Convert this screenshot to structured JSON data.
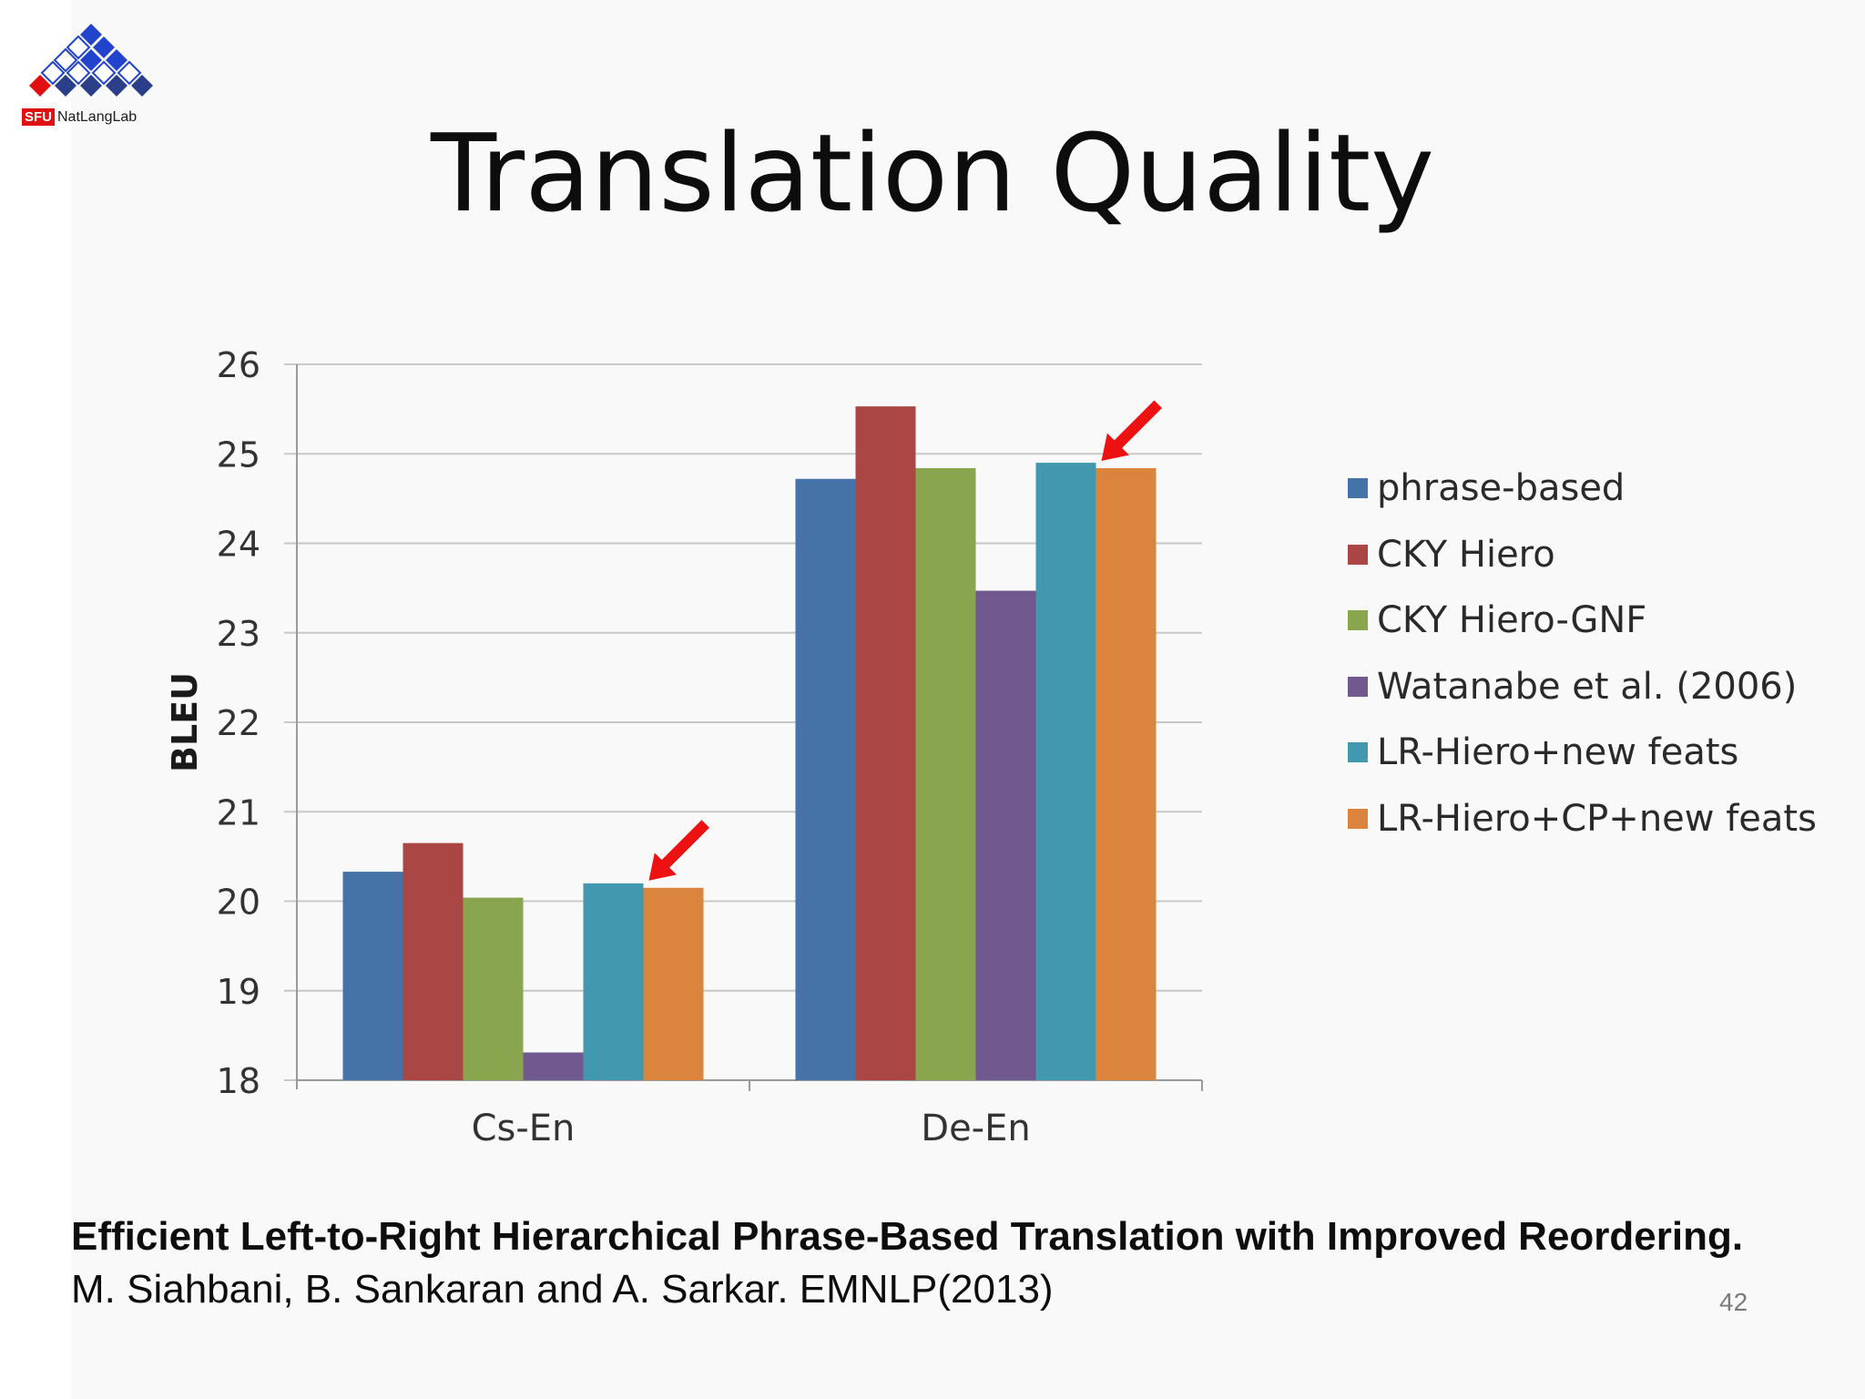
{
  "logo": {
    "sfu": "SFU",
    "lab": "NatLangLab"
  },
  "title": "Translation Quality",
  "chart_data": {
    "type": "bar",
    "categories": [
      "Cs-En",
      "De-En"
    ],
    "ylabel": "BLEU",
    "ylim": [
      18,
      26
    ],
    "yticks": [
      "18",
      "19",
      "20",
      "21",
      "22",
      "23",
      "24",
      "25",
      "26"
    ],
    "grid": true,
    "legend_position": "right",
    "series": [
      {
        "name": "phrase-based",
        "color": "#4572a7",
        "values": [
          20.33,
          24.72
        ]
      },
      {
        "name": "CKY Hiero",
        "color": "#aa4643",
        "values": [
          20.65,
          25.53
        ]
      },
      {
        "name": "CKY Hiero-GNF",
        "color": "#89a54e",
        "values": [
          20.04,
          24.84
        ]
      },
      {
        "name": "Watanabe et al. (2006)",
        "color": "#71588f",
        "values": [
          18.31,
          23.47
        ]
      },
      {
        "name": "LR-Hiero+new feats",
        "color": "#4198af",
        "values": [
          20.2,
          24.9
        ]
      },
      {
        "name": "LR-Hiero+CP+new feats",
        "color": "#db843d",
        "values": [
          20.15,
          24.84
        ]
      }
    ],
    "annotations": [
      {
        "type": "arrow",
        "color": "#ee1111",
        "category": "Cs-En",
        "series": "LR-Hiero+CP+new feats"
      },
      {
        "type": "arrow",
        "color": "#ee1111",
        "category": "De-En",
        "series": "LR-Hiero+CP+new feats"
      }
    ]
  },
  "citation": {
    "title": "Efficient Left-to-Right Hierarchical Phrase-Based Translation with Improved Reordering.",
    "authors": "M. Siahbani, B. Sankaran and A. Sarkar.  EMNLP(2013)"
  },
  "page_number": "42"
}
